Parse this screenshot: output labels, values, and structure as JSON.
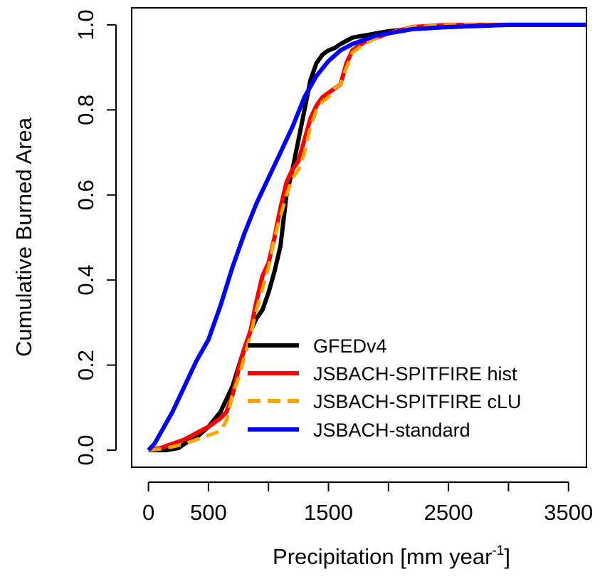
{
  "chart_data": {
    "type": "line",
    "title": "",
    "xlabel": "Precipitation [mm year",
    "xlabel_superscript": "-1",
    "xlabel_suffix": "]",
    "ylabel": "Cumulative Burned Area",
    "xlim": [
      -140,
      3650
    ],
    "ylim": [
      -0.04,
      1.04
    ],
    "x_ticks": [
      0,
      500,
      1000,
      1500,
      2000,
      2500,
      3000,
      3500
    ],
    "x_tick_labels": [
      "0",
      "500",
      "",
      "1500",
      "",
      "2500",
      "",
      "3500"
    ],
    "y_ticks": [
      0.0,
      0.2,
      0.4,
      0.6,
      0.8,
      1.0
    ],
    "y_tick_labels": [
      "0.0",
      "0.2",
      "0.4",
      "0.6",
      "0.8",
      "1.0"
    ],
    "grid": false,
    "legend_position": "bottom-right",
    "series": [
      {
        "name": "GFEDv4",
        "color": "#000000",
        "dash": "solid",
        "x": [
          0,
          150,
          250,
          300,
          400,
          500,
          600,
          700,
          800,
          850,
          900,
          950,
          1000,
          1050,
          1100,
          1150,
          1200,
          1250,
          1300,
          1350,
          1400,
          1450,
          1500,
          1550,
          1600,
          1700,
          1800,
          1900,
          2000,
          2200,
          2500,
          3000,
          3650
        ],
        "y": [
          0.0,
          0.0,
          0.005,
          0.015,
          0.03,
          0.055,
          0.09,
          0.15,
          0.24,
          0.28,
          0.31,
          0.33,
          0.37,
          0.42,
          0.48,
          0.6,
          0.66,
          0.73,
          0.8,
          0.87,
          0.91,
          0.93,
          0.94,
          0.945,
          0.955,
          0.97,
          0.975,
          0.98,
          0.985,
          0.99,
          0.995,
          1.0,
          1.0
        ]
      },
      {
        "name": "JSBACH-SPITFIRE hist",
        "color": "#ff0000",
        "dash": "solid",
        "x": [
          0,
          100,
          200,
          300,
          400,
          500,
          600,
          650,
          700,
          750,
          800,
          850,
          900,
          950,
          1000,
          1050,
          1100,
          1150,
          1200,
          1250,
          1300,
          1350,
          1400,
          1450,
          1500,
          1550,
          1600,
          1650,
          1700,
          1800,
          1900,
          2000,
          2200,
          2500,
          3000,
          3650
        ],
        "y": [
          0.0,
          0.005,
          0.015,
          0.025,
          0.04,
          0.055,
          0.075,
          0.09,
          0.13,
          0.19,
          0.24,
          0.28,
          0.35,
          0.41,
          0.44,
          0.5,
          0.57,
          0.63,
          0.66,
          0.68,
          0.73,
          0.78,
          0.81,
          0.83,
          0.84,
          0.85,
          0.86,
          0.91,
          0.94,
          0.96,
          0.97,
          0.98,
          0.995,
          1.0,
          1.0,
          1.0
        ]
      },
      {
        "name": "JSBACH-SPITFIRE cLU",
        "color": "#ffa500",
        "dash": "dashed",
        "x": [
          0,
          100,
          200,
          300,
          400,
          500,
          550,
          600,
          650,
          700,
          750,
          800,
          850,
          900,
          950,
          1000,
          1050,
          1100,
          1150,
          1200,
          1250,
          1300,
          1350,
          1400,
          1450,
          1500,
          1550,
          1600,
          1650,
          1700,
          1800,
          1900,
          2000,
          2200,
          2500,
          3000,
          3650
        ],
        "y": [
          0.0,
          0.003,
          0.008,
          0.015,
          0.025,
          0.035,
          0.04,
          0.045,
          0.07,
          0.13,
          0.17,
          0.22,
          0.27,
          0.33,
          0.38,
          0.43,
          0.5,
          0.55,
          0.6,
          0.64,
          0.66,
          0.7,
          0.76,
          0.8,
          0.82,
          0.83,
          0.85,
          0.86,
          0.9,
          0.935,
          0.955,
          0.97,
          0.98,
          0.995,
          1.0,
          1.0,
          1.0
        ]
      },
      {
        "name": "JSBACH-standard",
        "color": "#0000ff",
        "dash": "solid",
        "x": [
          0,
          50,
          100,
          200,
          300,
          400,
          500,
          600,
          700,
          800,
          900,
          1000,
          1100,
          1200,
          1300,
          1400,
          1500,
          1600,
          1700,
          1800,
          1900,
          2000,
          2200,
          2500,
          3000,
          3650
        ],
        "y": [
          0.0,
          0.015,
          0.04,
          0.09,
          0.15,
          0.21,
          0.26,
          0.34,
          0.43,
          0.51,
          0.58,
          0.64,
          0.7,
          0.76,
          0.83,
          0.88,
          0.915,
          0.94,
          0.955,
          0.965,
          0.975,
          0.98,
          0.99,
          0.995,
          1.0,
          1.0
        ]
      }
    ]
  }
}
